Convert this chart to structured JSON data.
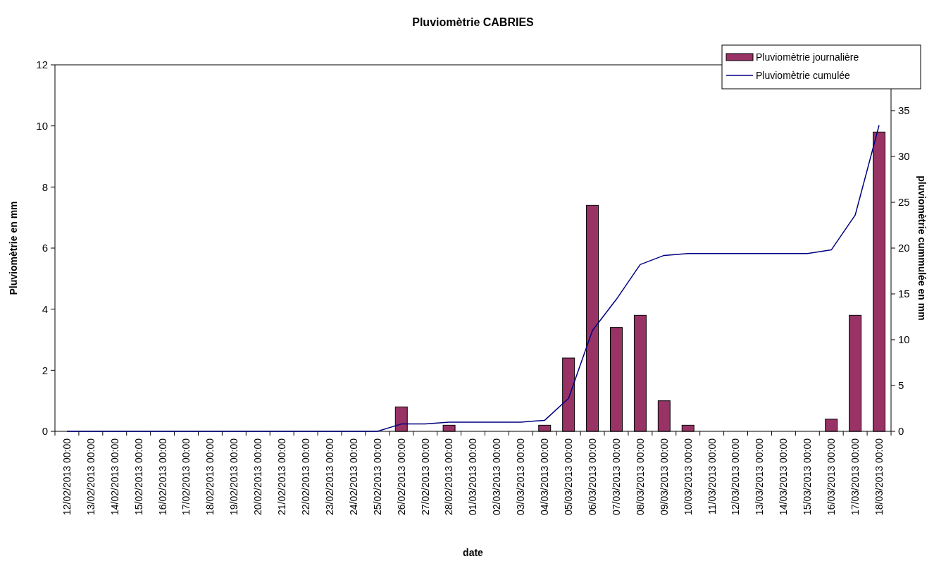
{
  "chart_data": {
    "type": "bar",
    "title": "Pluviomètrie CABRIES",
    "xlabel": "date",
    "ylabel": "Pluviomètrie en mm",
    "y2label": "pluviomètrie cummulée en mm",
    "categories": [
      "12/02/2013 00:00",
      "13/02/2013 00:00",
      "14/02/2013 00:00",
      "15/02/2013 00:00",
      "16/02/2013 00:00",
      "17/02/2013 00:00",
      "18/02/2013 00:00",
      "19/02/2013 00:00",
      "20/02/2013 00:00",
      "21/02/2013 00:00",
      "22/02/2013 00:00",
      "23/02/2013 00:00",
      "24/02/2013 00:00",
      "25/02/2013 00:00",
      "26/02/2013 00:00",
      "27/02/2013 00:00",
      "28/02/2013 00:00",
      "01/03/2013 00:00",
      "02/03/2013 00:00",
      "03/03/2013 00:00",
      "04/03/2013 00:00",
      "05/03/2013 00:00",
      "06/03/2013 00:00",
      "07/03/2013 00:00",
      "08/03/2013 00:00",
      "09/03/2013 00:00",
      "10/03/2013 00:00",
      "11/03/2013 00:00",
      "12/03/2013 00:00",
      "13/03/2013 00:00",
      "14/03/2013 00:00",
      "15/03/2013 00:00",
      "16/03/2013 00:00",
      "17/03/2013 00:00",
      "18/03/2013 00:00"
    ],
    "series": [
      {
        "name": "Pluviomètrie journalière",
        "color": "#993366",
        "values": [
          0,
          0,
          0,
          0,
          0,
          0,
          0,
          0,
          0,
          0,
          0,
          0,
          0,
          0,
          0.8,
          0,
          0.2,
          0,
          0,
          0,
          0.2,
          2.4,
          7.4,
          3.4,
          3.8,
          1.0,
          0.2,
          0,
          0,
          0,
          0,
          0,
          0.4,
          3.8,
          9.8
        ]
      },
      {
        "name": "Pluviomètrie cumulée",
        "type": "line",
        "axis": "y2",
        "color": "#000080",
        "values": [
          0,
          0,
          0,
          0,
          0,
          0,
          0,
          0,
          0,
          0,
          0,
          0,
          0,
          0,
          0.8,
          0.8,
          1.0,
          1.0,
          1.0,
          1.0,
          1.2,
          3.6,
          11.0,
          14.4,
          18.2,
          19.2,
          19.4,
          19.4,
          19.4,
          19.4,
          19.4,
          19.4,
          19.8,
          23.6,
          33.4
        ]
      }
    ],
    "ylim": [
      0,
      12
    ],
    "yticks": [
      0,
      2,
      4,
      6,
      8,
      10,
      12
    ],
    "y2lim": [
      0,
      40
    ],
    "y2ticks": [
      0,
      5,
      10,
      15,
      20,
      25,
      30,
      35
    ],
    "grid": false,
    "legend": "top right"
  }
}
